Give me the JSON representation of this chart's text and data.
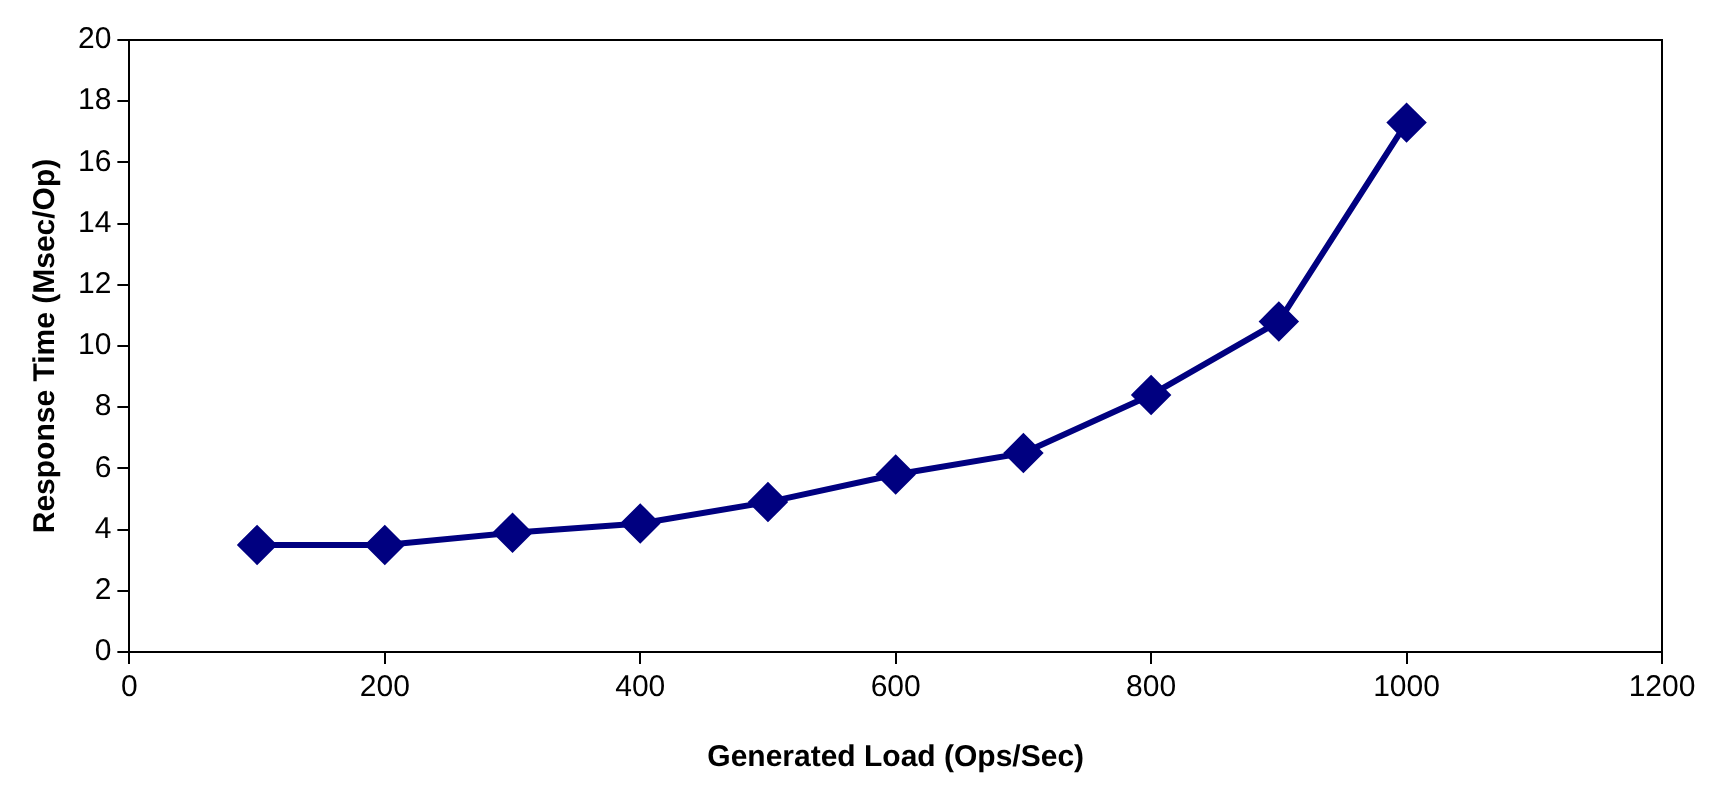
{
  "chart_data": {
    "type": "line",
    "xlabel": "Generated Load (Ops/Sec)",
    "ylabel": "Response Time (Msec/Op)",
    "x": [
      100,
      200,
      300,
      400,
      500,
      600,
      700,
      800,
      900,
      1000
    ],
    "series": [
      {
        "color": "#000080",
        "values": [
          3.5,
          3.5,
          3.9,
          4.2,
          4.9,
          5.8,
          6.5,
          8.4,
          10.8,
          17.3
        ]
      }
    ],
    "xlim": [
      0,
      1200
    ],
    "xticks": [
      0,
      200,
      400,
      600,
      800,
      1000,
      1200
    ],
    "ylim": [
      0,
      20
    ],
    "yticks": [
      0,
      2,
      4,
      6,
      8,
      10,
      12,
      14,
      16,
      18,
      20
    ],
    "grid": false,
    "legend": false,
    "marker": "diamond",
    "line_style": "solid"
  }
}
